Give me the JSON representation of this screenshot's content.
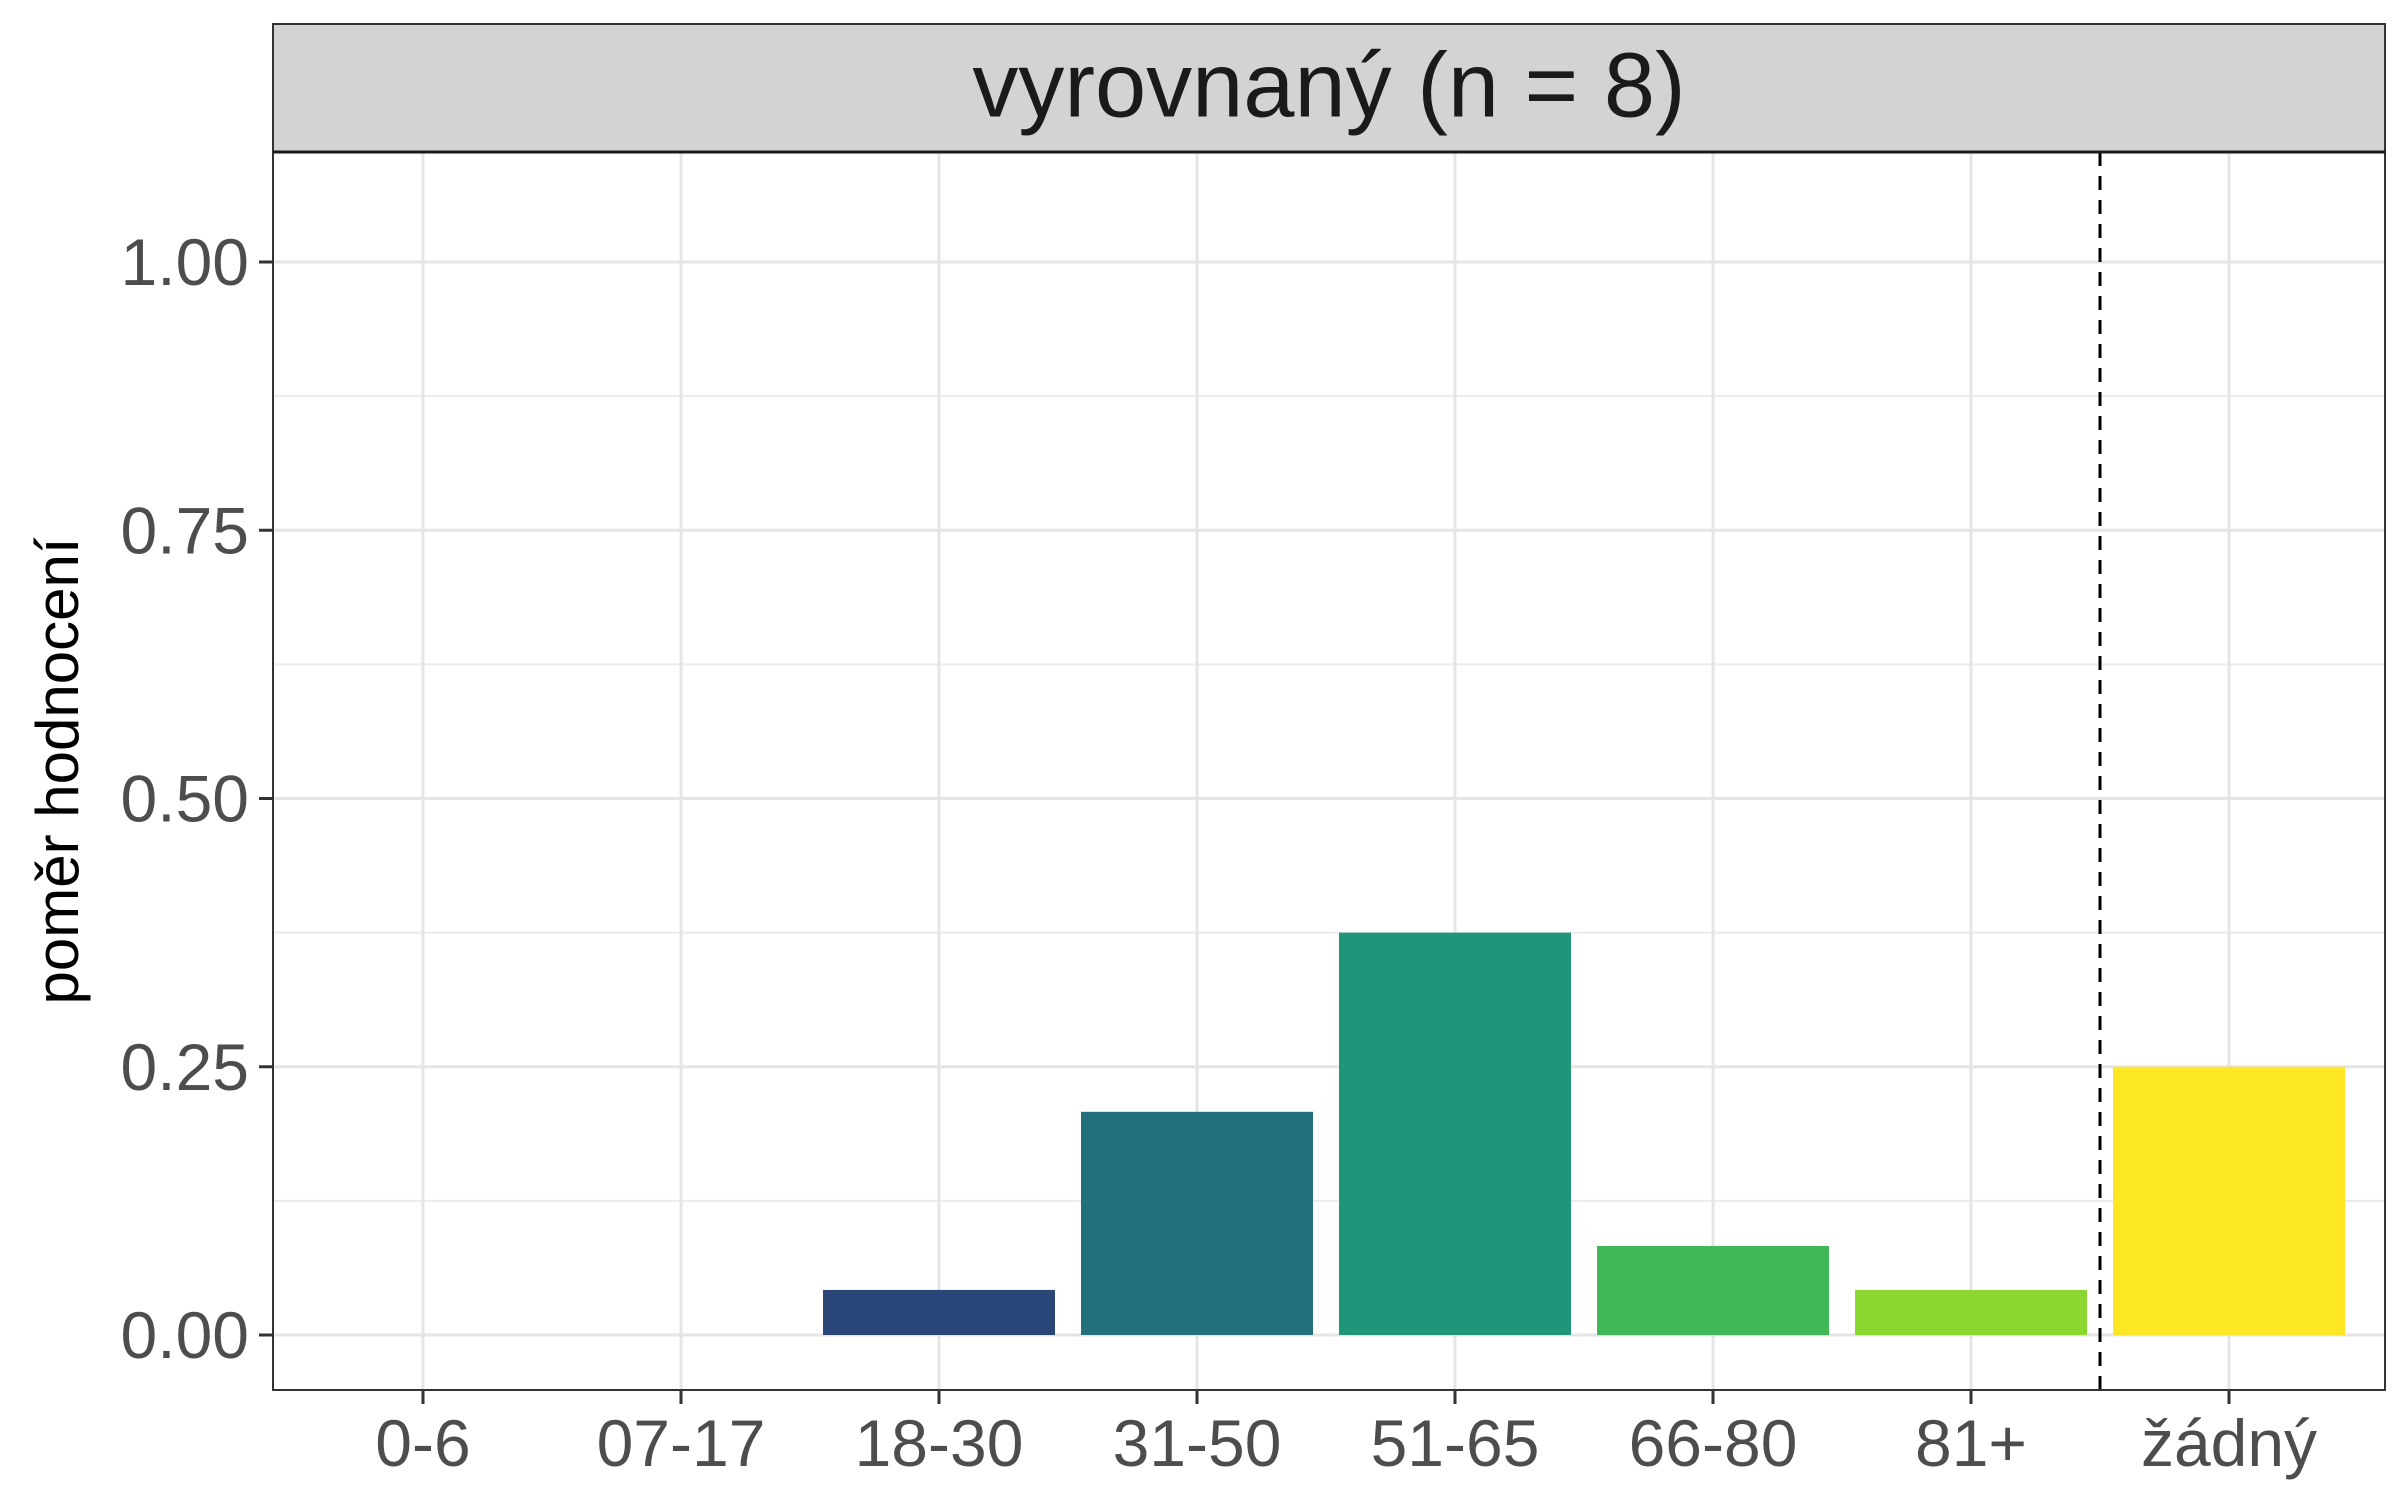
{
  "chart_data": {
    "type": "bar",
    "title": "vyrovnaný (n = 8)",
    "xlabel": "",
    "ylabel": "poměr hodnocení",
    "categories": [
      "0-6",
      "07-17",
      "18-30",
      "31-50",
      "51-65",
      "66-80",
      "81+",
      "žádný"
    ],
    "values": [
      0,
      0,
      0.042,
      0.208,
      0.375,
      0.083,
      0.042,
      0.25
    ],
    "colors": [
      "#440154",
      "#46337E",
      "#2A4679",
      "#21707C",
      "#21957A",
      "#40B857",
      "#8CD630",
      "#FDE725"
    ],
    "ylim": [
      -0.05,
      1.1
    ],
    "yticks": [
      0.0,
      0.25,
      0.5,
      0.75,
      1.0
    ],
    "ytick_labels": [
      "0.00",
      "0.25",
      "0.50",
      "0.75",
      "1.00"
    ],
    "separator": {
      "between": [
        "81+",
        "žádný"
      ],
      "style": "dashed"
    },
    "grid": true
  }
}
